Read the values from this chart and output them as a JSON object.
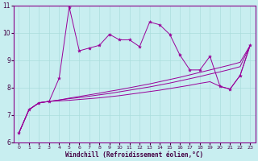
{
  "xlabel": "Windchill (Refroidissement éolien,°C)",
  "background_color": "#c8eef0",
  "line_color": "#990099",
  "grid_color": "#aadddd",
  "xlim": [
    -0.5,
    23.5
  ],
  "ylim": [
    6,
    11
  ],
  "yticks": [
    6,
    7,
    8,
    9,
    10,
    11
  ],
  "xticks": [
    0,
    1,
    2,
    3,
    4,
    5,
    6,
    7,
    8,
    9,
    10,
    11,
    12,
    13,
    14,
    15,
    16,
    17,
    18,
    19,
    20,
    21,
    22,
    23
  ],
  "series1_x": [
    0,
    1,
    2,
    3,
    4,
    5,
    6,
    7,
    8,
    9,
    10,
    11,
    12,
    13,
    14,
    15,
    16,
    17,
    18,
    19,
    20,
    21,
    22,
    23
  ],
  "series1_y": [
    6.35,
    7.2,
    7.45,
    7.5,
    8.35,
    10.95,
    9.35,
    9.45,
    9.55,
    9.95,
    9.75,
    9.75,
    9.5,
    10.4,
    10.3,
    9.95,
    9.2,
    8.65,
    8.65,
    9.15,
    8.05,
    7.95,
    8.45,
    9.55
  ],
  "series2_x": [
    0,
    1,
    2,
    3,
    4,
    5,
    6,
    7,
    8,
    9,
    10,
    11,
    12,
    13,
    14,
    15,
    16,
    17,
    18,
    19,
    20,
    21,
    22,
    23
  ],
  "series2_y": [
    6.35,
    7.2,
    7.45,
    7.5,
    7.55,
    7.62,
    7.68,
    7.74,
    7.8,
    7.87,
    7.93,
    8.0,
    8.07,
    8.14,
    8.22,
    8.3,
    8.38,
    8.47,
    8.56,
    8.65,
    8.74,
    8.83,
    8.93,
    9.55
  ],
  "series3_x": [
    0,
    1,
    2,
    3,
    4,
    5,
    6,
    7,
    8,
    9,
    10,
    11,
    12,
    13,
    14,
    15,
    16,
    17,
    18,
    19,
    20,
    21,
    22,
    23
  ],
  "series3_y": [
    6.35,
    7.2,
    7.45,
    7.5,
    7.55,
    7.6,
    7.64,
    7.69,
    7.74,
    7.79,
    7.85,
    7.91,
    7.97,
    8.03,
    8.1,
    8.17,
    8.25,
    8.33,
    8.41,
    8.5,
    8.58,
    8.67,
    8.77,
    9.55
  ],
  "series4_x": [
    0,
    1,
    2,
    3,
    4,
    5,
    6,
    7,
    8,
    9,
    10,
    11,
    12,
    13,
    14,
    15,
    16,
    17,
    18,
    19,
    20,
    21,
    22,
    23
  ],
  "series4_y": [
    6.35,
    7.2,
    7.45,
    7.5,
    7.52,
    7.54,
    7.57,
    7.6,
    7.63,
    7.67,
    7.71,
    7.76,
    7.81,
    7.86,
    7.91,
    7.97,
    8.03,
    8.09,
    8.16,
    8.22,
    8.05,
    7.95,
    8.45,
    9.55
  ]
}
